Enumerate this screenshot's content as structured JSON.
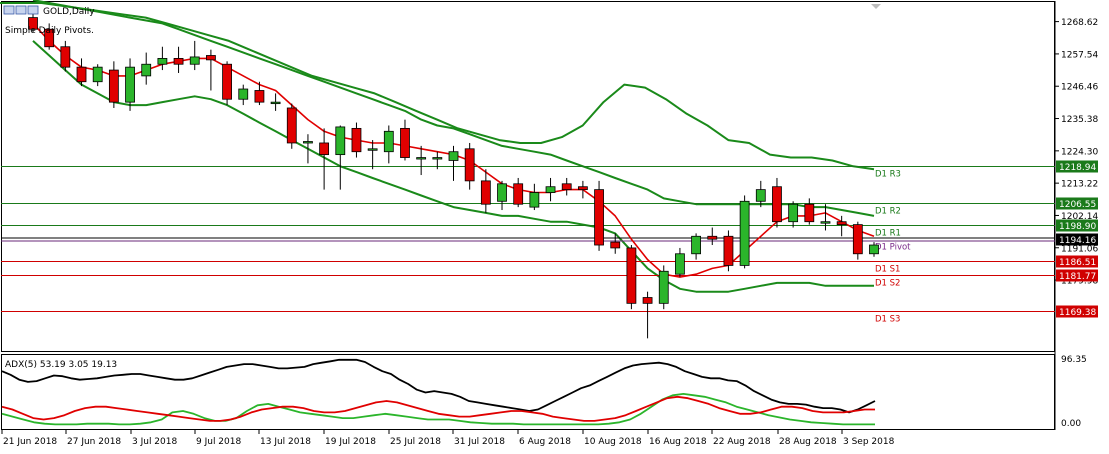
{
  "header": {
    "symbol": "GOLD,Daily",
    "indicator_note": "Simple Daily Pivots."
  },
  "adx_label": "ADX(5) 53.19 3.05 19.13",
  "colors": {
    "bull": "#2bb52b",
    "bear": "#e00000",
    "ma": "#e00000",
    "band": "#1a8a1a",
    "resistance": "#1a7a1a",
    "support": "#d00000",
    "pivot": "#000000",
    "adx_main": "#000000",
    "adx_plus": "#2bb52b",
    "adx_minus": "#e00000"
  },
  "chart_data": [
    {
      "type": "candlestick",
      "title": "GOLD,Daily",
      "ylim": [
        1156,
        1275
      ],
      "y_ticks": [
        "1268.62",
        "1257.54",
        "1246.46",
        "1235.38",
        "1224.30",
        "1213.22",
        "1202.14",
        "1191.06",
        "1179.98"
      ],
      "x_ticks": [
        "21 Jun 2018",
        "27 Jun 2018",
        "3 Jul 2018",
        "9 Jul 2018",
        "13 Jul 2018",
        "19 Jul 2018",
        "25 Jul 2018",
        "31 Jul 2018",
        "6 Aug 2018",
        "10 Aug 2018",
        "16 Aug 2018",
        "22 Aug 2018",
        "28 Aug 2018",
        "3 Sep 2018"
      ],
      "candles": [
        {
          "o": 1270.0,
          "h": 1272.5,
          "l": 1265.0,
          "c": 1266.0
        },
        {
          "o": 1266.0,
          "h": 1268.0,
          "l": 1259.0,
          "c": 1260.0
        },
        {
          "o": 1260.0,
          "h": 1262.0,
          "l": 1251.5,
          "c": 1253.0
        },
        {
          "o": 1253.0,
          "h": 1256.0,
          "l": 1246.5,
          "c": 1248.0
        },
        {
          "o": 1248.0,
          "h": 1254.0,
          "l": 1246.5,
          "c": 1253.0
        },
        {
          "o": 1252.0,
          "h": 1255.0,
          "l": 1239.0,
          "c": 1241.0
        },
        {
          "o": 1241.0,
          "h": 1256.0,
          "l": 1238.0,
          "c": 1253.0
        },
        {
          "o": 1250.0,
          "h": 1258.0,
          "l": 1247.0,
          "c": 1254.0
        },
        {
          "o": 1254.0,
          "h": 1260.0,
          "l": 1252.0,
          "c": 1256.0
        },
        {
          "o": 1256.0,
          "h": 1260.0,
          "l": 1251.0,
          "c": 1254.0
        },
        {
          "o": 1254.0,
          "h": 1262.0,
          "l": 1252.0,
          "c": 1256.5
        },
        {
          "o": 1257.0,
          "h": 1259.0,
          "l": 1245.0,
          "c": 1255.5
        },
        {
          "o": 1254.0,
          "h": 1255.0,
          "l": 1240.0,
          "c": 1242.0
        },
        {
          "o": 1242.0,
          "h": 1247.0,
          "l": 1240.0,
          "c": 1245.5
        },
        {
          "o": 1245.0,
          "h": 1248.0,
          "l": 1240.0,
          "c": 1241.0
        },
        {
          "o": 1241.0,
          "h": 1244.0,
          "l": 1238.0,
          "c": 1241.0
        },
        {
          "o": 1239.0,
          "h": 1240.5,
          "l": 1225.0,
          "c": 1227.0
        },
        {
          "o": 1227.0,
          "h": 1230.0,
          "l": 1220.0,
          "c": 1227.5
        },
        {
          "o": 1227.0,
          "h": 1232.0,
          "l": 1211.0,
          "c": 1223.0
        },
        {
          "o": 1223.0,
          "h": 1233.0,
          "l": 1211.0,
          "c": 1232.5
        },
        {
          "o": 1232.0,
          "h": 1234.0,
          "l": 1222.0,
          "c": 1224.0
        },
        {
          "o": 1225.0,
          "h": 1228.0,
          "l": 1218.0,
          "c": 1225.0
        },
        {
          "o": 1224.0,
          "h": 1233.0,
          "l": 1220.0,
          "c": 1231.0
        },
        {
          "o": 1232.0,
          "h": 1235.0,
          "l": 1221.0,
          "c": 1222.0
        },
        {
          "o": 1222.0,
          "h": 1226.0,
          "l": 1216.0,
          "c": 1222.0
        },
        {
          "o": 1222.0,
          "h": 1224.0,
          "l": 1218.0,
          "c": 1222.0
        },
        {
          "o": 1221.0,
          "h": 1226.0,
          "l": 1214.0,
          "c": 1224.0
        },
        {
          "o": 1225.0,
          "h": 1227.0,
          "l": 1211.0,
          "c": 1214.0
        },
        {
          "o": 1214.0,
          "h": 1218.0,
          "l": 1203.0,
          "c": 1206.0
        },
        {
          "o": 1207.0,
          "h": 1214.0,
          "l": 1204.0,
          "c": 1213.0
        },
        {
          "o": 1213.0,
          "h": 1215.0,
          "l": 1205.0,
          "c": 1206.0
        },
        {
          "o": 1205.0,
          "h": 1213.0,
          "l": 1204.0,
          "c": 1210.0
        },
        {
          "o": 1210.0,
          "h": 1215.0,
          "l": 1207.0,
          "c": 1212.0
        },
        {
          "o": 1213.0,
          "h": 1215.0,
          "l": 1209.0,
          "c": 1211.0
        },
        {
          "o": 1212.0,
          "h": 1214.0,
          "l": 1208.0,
          "c": 1211.0
        },
        {
          "o": 1211.0,
          "h": 1214.0,
          "l": 1190.0,
          "c": 1192.0
        },
        {
          "o": 1193.0,
          "h": 1196.0,
          "l": 1189.0,
          "c": 1191.0
        },
        {
          "o": 1191.0,
          "h": 1192.0,
          "l": 1170.0,
          "c": 1172.0
        },
        {
          "o": 1174.0,
          "h": 1176.0,
          "l": 1160.0,
          "c": 1172.0
        },
        {
          "o": 1172.0,
          "h": 1185.0,
          "l": 1170.0,
          "c": 1183.0
        },
        {
          "o": 1182.0,
          "h": 1191.0,
          "l": 1181.0,
          "c": 1189.0
        },
        {
          "o": 1189.0,
          "h": 1196.0,
          "l": 1187.0,
          "c": 1195.0
        },
        {
          "o": 1195.0,
          "h": 1198.0,
          "l": 1192.0,
          "c": 1194.0
        },
        {
          "o": 1195.0,
          "h": 1197.0,
          "l": 1183.0,
          "c": 1185.0
        },
        {
          "o": 1185.0,
          "h": 1209.0,
          "l": 1184.0,
          "c": 1207.0
        },
        {
          "o": 1207.0,
          "h": 1214.0,
          "l": 1205.0,
          "c": 1211.0
        },
        {
          "o": 1212.0,
          "h": 1215.0,
          "l": 1198.0,
          "c": 1200.0
        },
        {
          "o": 1200.0,
          "h": 1207.0,
          "l": 1198.0,
          "c": 1206.0
        },
        {
          "o": 1206.0,
          "h": 1208.0,
          "l": 1199.0,
          "c": 1200.0
        },
        {
          "o": 1200.0,
          "h": 1206.0,
          "l": 1197.0,
          "c": 1200.0
        },
        {
          "o": 1200.0,
          "h": 1202.0,
          "l": 1195.0,
          "c": 1199.0
        },
        {
          "o": 1199.0,
          "h": 1200.0,
          "l": 1187.0,
          "c": 1189.0
        },
        {
          "o": 1189.0,
          "h": 1193.0,
          "l": 1188.0,
          "c": 1192.0
        }
      ],
      "ma": [
        1268,
        1262,
        1257,
        1253,
        1252,
        1250,
        1250,
        1252,
        1254,
        1255,
        1256,
        1256,
        1253,
        1250,
        1247,
        1245,
        1240,
        1235,
        1231,
        1229,
        1228,
        1227,
        1227,
        1226,
        1225,
        1224,
        1223,
        1221,
        1217,
        1213,
        1211,
        1210,
        1210,
        1211,
        1211,
        1207,
        1202,
        1194,
        1187,
        1182,
        1181,
        1182,
        1184,
        1185,
        1190,
        1195,
        1200,
        1202,
        1202,
        1203,
        1200,
        1197,
        1195
      ],
      "upper_band": [
        1276,
        1275,
        1274,
        1273,
        1272,
        1271,
        1270,
        1269,
        1268,
        1266,
        1264,
        1262,
        1260,
        1258,
        1256,
        1254,
        1252,
        1250,
        1248,
        1246,
        1244,
        1242,
        1240,
        1238,
        1235,
        1233,
        1232,
        1230,
        1228,
        1226,
        1225,
        1224,
        1223,
        1221,
        1219,
        1217,
        1215,
        1213,
        1211,
        1208,
        1207,
        1206,
        1206,
        1206,
        1206,
        1206,
        1206,
        1206,
        1205,
        1205,
        1204,
        1203,
        1202
      ],
      "lower_band": [
        1262,
        1257,
        1252,
        1247,
        1244,
        1241,
        1240,
        1240,
        1241,
        1242,
        1243,
        1242,
        1240,
        1237,
        1234,
        1231,
        1228,
        1225,
        1222,
        1219,
        1217,
        1215,
        1213,
        1211,
        1209,
        1207,
        1205,
        1204,
        1203,
        1202,
        1202,
        1201,
        1200,
        1200,
        1199,
        1198,
        1196,
        1190,
        1184,
        1180,
        1177,
        1176,
        1176,
        1176,
        1177,
        1178,
        1179,
        1179,
        1179,
        1178,
        1178,
        1178,
        1178
      ],
      "upper_env": [
        1275,
        1275,
        1275,
        1274,
        1273,
        1272,
        1271,
        1270,
        1268,
        1266,
        1264,
        1262,
        1259,
        1256,
        1253,
        1250,
        1248,
        1246,
        1244,
        1241,
        1238,
        1235,
        1232,
        1230,
        1228,
        1227,
        1227,
        1229,
        1233,
        1241,
        1247,
        1246,
        1242,
        1237,
        1233,
        1228,
        1227,
        1223,
        1222,
        1222,
        1221,
        1219,
        1218
      ],
      "pivots": [
        {
          "label": "D1 R3",
          "value": 1218.94,
          "tag": "1218.94",
          "kind": "resistance"
        },
        {
          "label": "D1 R2",
          "value": 1206.55,
          "tag": "1206.55",
          "kind": "resistance"
        },
        {
          "label": "D1 R1",
          "value": 1198.9,
          "tag": "1198.90",
          "kind": "resistance"
        },
        {
          "label": "D1 Pivot",
          "value": 1194.16,
          "tag": "1194.16",
          "kind": "pivot"
        },
        {
          "label": "D1 S1",
          "value": 1186.51,
          "tag": "1186.51",
          "kind": "support"
        },
        {
          "label": "D1 S2",
          "value": 1181.77,
          "tag": "1181.77",
          "kind": "support"
        },
        {
          "label": "D1 S3",
          "value": 1169.38,
          "tag": "1169.38",
          "kind": "support"
        }
      ]
    },
    {
      "type": "line",
      "title": "ADX(5) 53.19 3.05 19.13",
      "ylim": [
        0,
        100
      ],
      "y_ticks": [
        "96.35",
        "0.00"
      ],
      "series": [
        {
          "name": "ADX",
          "values": [
            80,
            75,
            68,
            65,
            66,
            70,
            74,
            73,
            70,
            68,
            69,
            70,
            72,
            74,
            75,
            76,
            76,
            74,
            72,
            70,
            68,
            68,
            70,
            74,
            78,
            82,
            86,
            88,
            90,
            90,
            88,
            86,
            84,
            84,
            85,
            86,
            90,
            92,
            94,
            96,
            96,
            96,
            93,
            86,
            80,
            76,
            68,
            62,
            54,
            50,
            52,
            50,
            48,
            44,
            38,
            36,
            34,
            32,
            30,
            28,
            26,
            24,
            26,
            32,
            38,
            44,
            50,
            56,
            60,
            66,
            72,
            78,
            84,
            88,
            90,
            91,
            92,
            90,
            86,
            80,
            76,
            72,
            70,
            70,
            67,
            66,
            60,
            52,
            46,
            40,
            36,
            34,
            34,
            33,
            30,
            28,
            28,
            26,
            22,
            26,
            32,
            38
          ]
        },
        {
          "name": "+DI",
          "values": [
            20,
            16,
            12,
            8,
            6,
            5,
            5,
            5,
            6,
            6,
            6,
            5,
            5,
            6,
            8,
            12,
            22,
            24,
            20,
            14,
            10,
            10,
            14,
            24,
            32,
            34,
            30,
            26,
            22,
            20,
            18,
            16,
            14,
            14,
            16,
            18,
            20,
            18,
            16,
            14,
            12,
            12,
            12,
            10,
            8,
            7,
            6,
            6,
            6,
            5,
            5,
            5,
            5,
            5,
            5,
            5,
            5,
            6,
            8,
            12,
            20,
            30,
            40,
            46,
            48,
            46,
            44,
            40,
            36,
            30,
            26,
            22,
            18,
            15,
            12,
            10,
            8,
            7,
            6,
            5,
            5,
            5,
            5
          ]
        },
        {
          "name": "-DI",
          "values": [
            30,
            26,
            20,
            14,
            12,
            14,
            18,
            24,
            28,
            30,
            30,
            28,
            26,
            24,
            22,
            20,
            18,
            16,
            14,
            12,
            10,
            10,
            12,
            16,
            22,
            26,
            28,
            30,
            30,
            28,
            24,
            22,
            22,
            24,
            28,
            32,
            36,
            38,
            36,
            32,
            28,
            24,
            20,
            18,
            16,
            16,
            18,
            20,
            22,
            24,
            24,
            22,
            20,
            16,
            14,
            12,
            10,
            10,
            12,
            14,
            18,
            24,
            30,
            36,
            42,
            44,
            42,
            38,
            34,
            28,
            24,
            20,
            20,
            22,
            26,
            30,
            30,
            28,
            24,
            22,
            22,
            22,
            24,
            26,
            26
          ]
        }
      ]
    }
  ]
}
